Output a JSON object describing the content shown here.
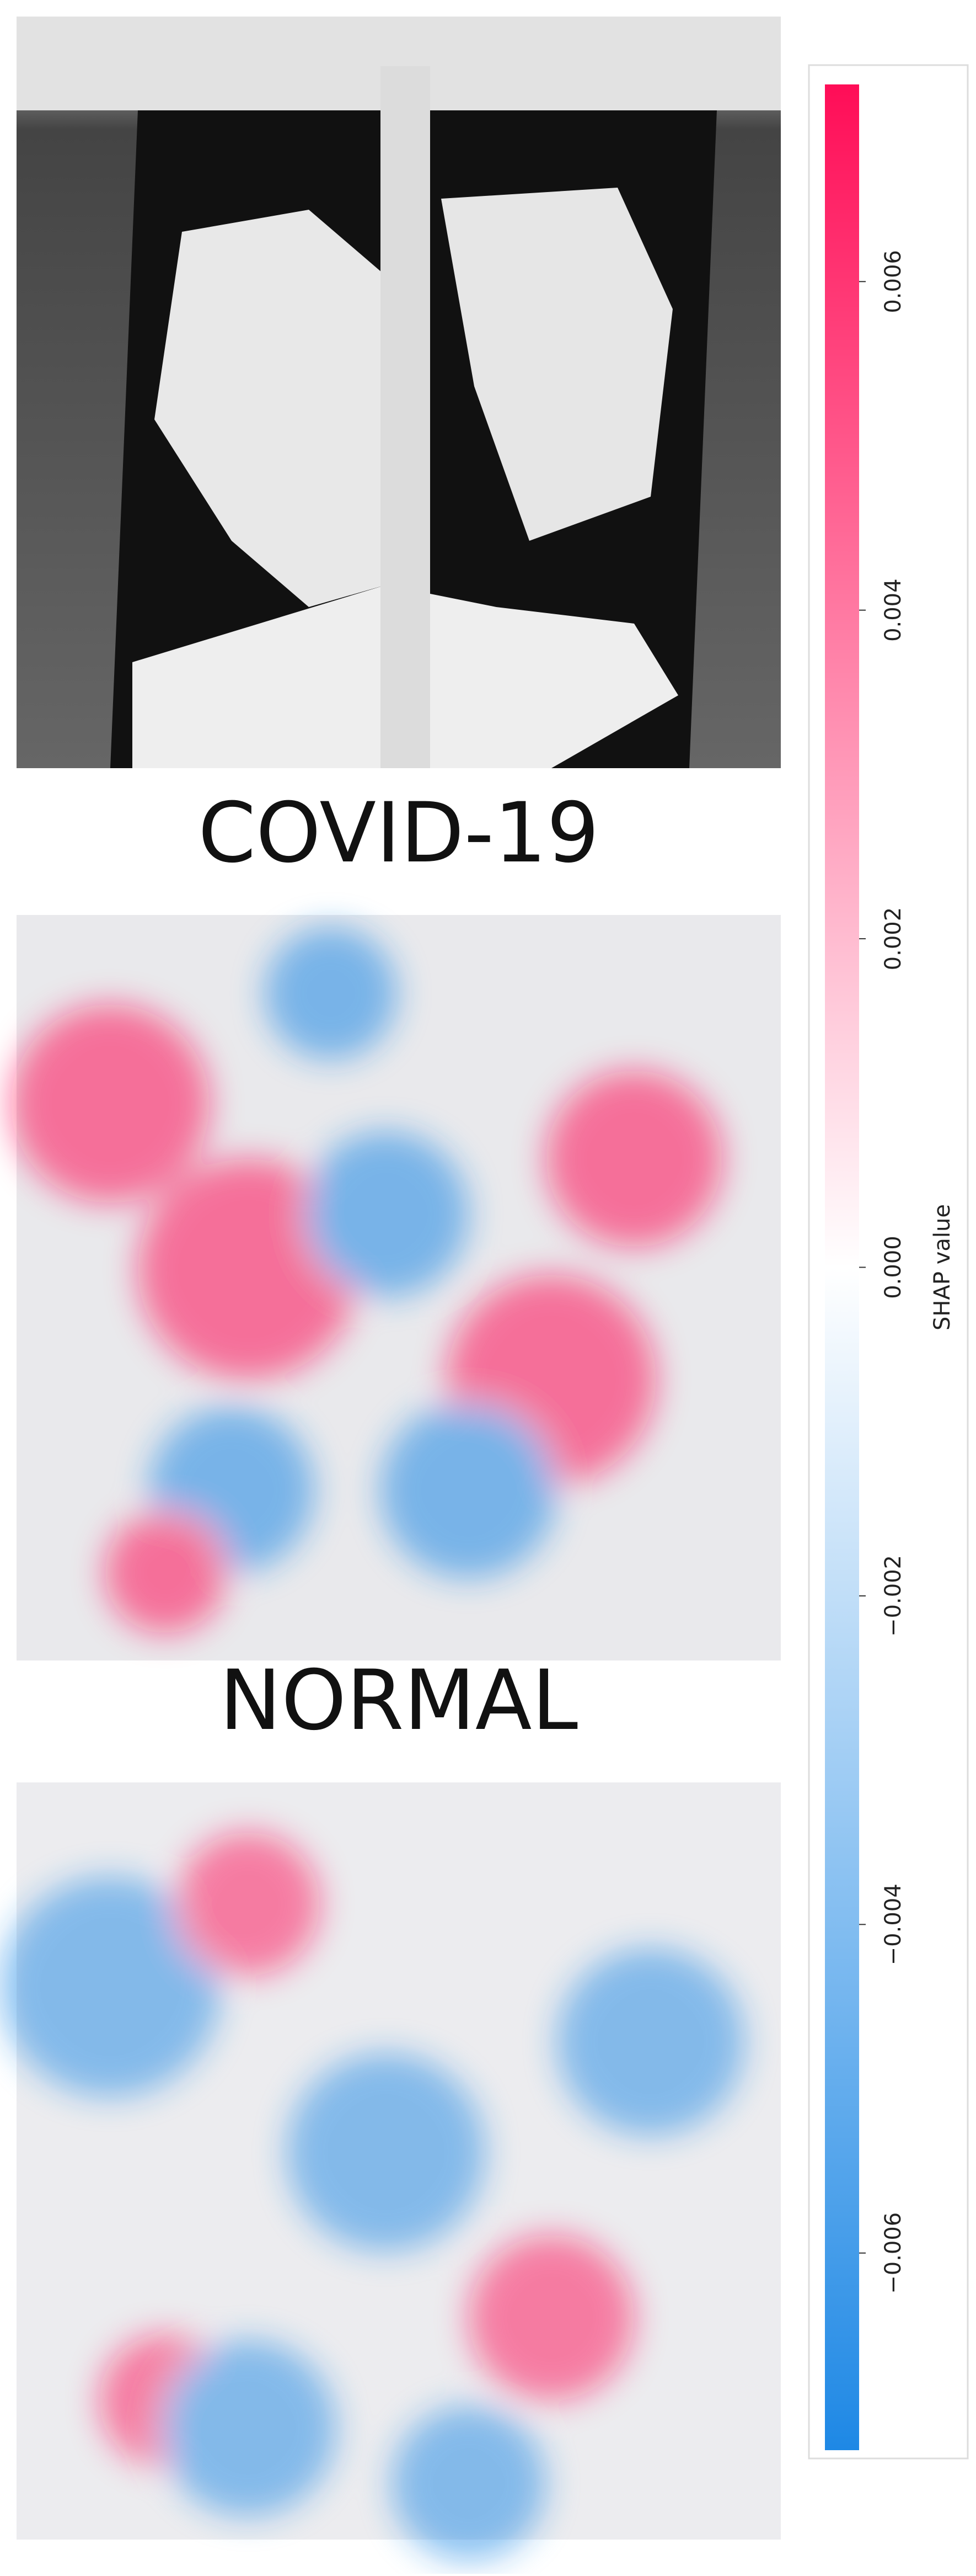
{
  "chart_data": {
    "type": "shap-image",
    "titles": [
      "COVID-19",
      "NORMAL"
    ],
    "colorbar_label": "SHAP value",
    "colors": [
      "#1e88e5",
      "#ffffff",
      "#ff0d57"
    ],
    "ylim": [
      -0.0072,
      0.0072
    ],
    "yticks": [
      {
        "value": -0.006,
        "label": "−0.006"
      },
      {
        "value": -0.004,
        "label": "−0.004"
      },
      {
        "value": -0.002,
        "label": "−0.002"
      },
      {
        "value": 0,
        "label": "0.000"
      },
      0.002,
      0.004,
      0.006
    ]
  }
}
